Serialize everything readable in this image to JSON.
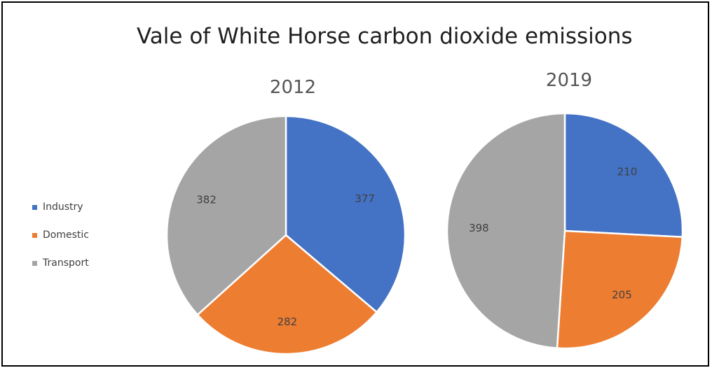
{
  "chart_data": {
    "type": "pie",
    "title": "Vale of White Horse carbon dioxide emissions",
    "legend": {
      "position": "left",
      "entries": [
        {
          "name": "Industry",
          "color": "#4472C4"
        },
        {
          "name": "Domestic",
          "color": "#ED7D31"
        },
        {
          "name": "Transport",
          "color": "#A5A5A5"
        }
      ]
    },
    "categories": [
      "Industry",
      "Domestic",
      "Transport"
    ],
    "charts": [
      {
        "subtitle": "2012",
        "values": [
          377,
          282,
          382
        ]
      },
      {
        "subtitle": "2019",
        "values": [
          210,
          205,
          398
        ]
      }
    ]
  }
}
